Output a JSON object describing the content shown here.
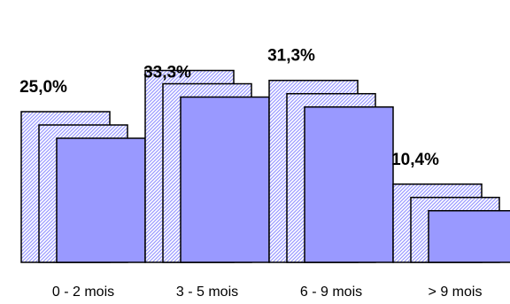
{
  "chart_data": {
    "type": "bar",
    "style": "3d-stacked-depth",
    "categories": [
      "0 - 2 mois",
      "3 - 5 mois",
      "6 - 9 mois",
      "> 9 mois"
    ],
    "values": [
      25.0,
      33.3,
      31.3,
      10.4
    ],
    "value_labels": [
      "25,0%",
      "33,3%",
      "31,3%",
      "10,4%"
    ],
    "ylim": [
      0,
      40
    ],
    "grid": false,
    "legend": "none",
    "colors": {
      "front": "#9999ff",
      "back_hatch": "#9999ff",
      "outline": "#000000"
    }
  }
}
